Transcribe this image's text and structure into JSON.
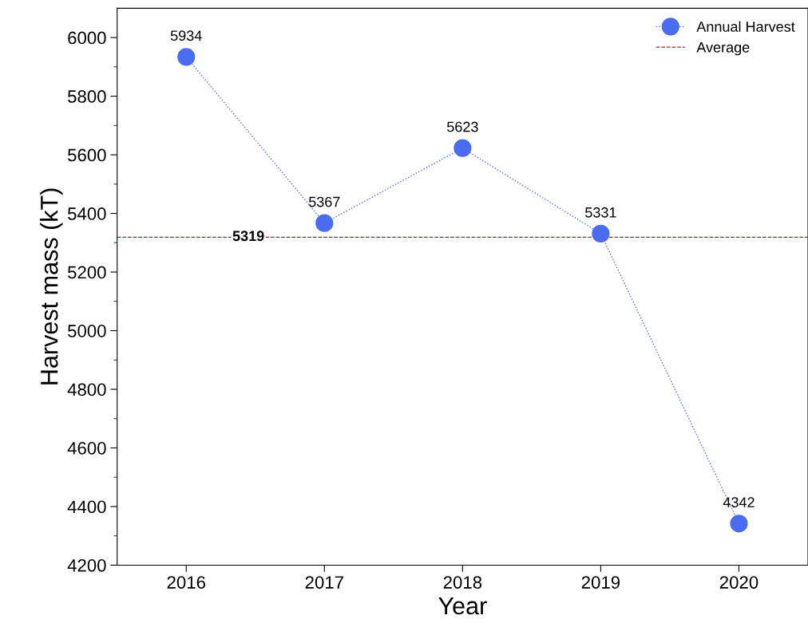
{
  "chart_data": {
    "type": "line",
    "xlabel": "Year",
    "ylabel": "Harvest mass (kT)",
    "x": [
      2016,
      2017,
      2018,
      2019,
      2020
    ],
    "series": [
      {
        "name": "Annual Harvest",
        "color": "#4a6cf0",
        "values": [
          5934,
          5367,
          5623,
          5331,
          4342
        ]
      },
      {
        "name": "Average",
        "color": "#a0282d",
        "x": [
          2015.5,
          2020.5
        ],
        "values": [
          5319,
          5319
        ],
        "line_style": "dashed",
        "marker": "none",
        "data_labels": false
      }
    ],
    "data_labels": true,
    "marker": "circle",
    "line_style": "dotted",
    "annotations": [
      {
        "text": "5319",
        "x": 2016.45,
        "y": 5319
      }
    ],
    "xlim": [
      2015.5,
      2020.5
    ],
    "xticks": [
      2016,
      2017,
      2018,
      2019,
      2020
    ],
    "ylim": [
      4200,
      6100
    ],
    "yticks": [
      4200,
      4400,
      4600,
      4800,
      5000,
      5200,
      5400,
      5600,
      5800,
      6000
    ],
    "grid": false,
    "legend": "top right"
  }
}
